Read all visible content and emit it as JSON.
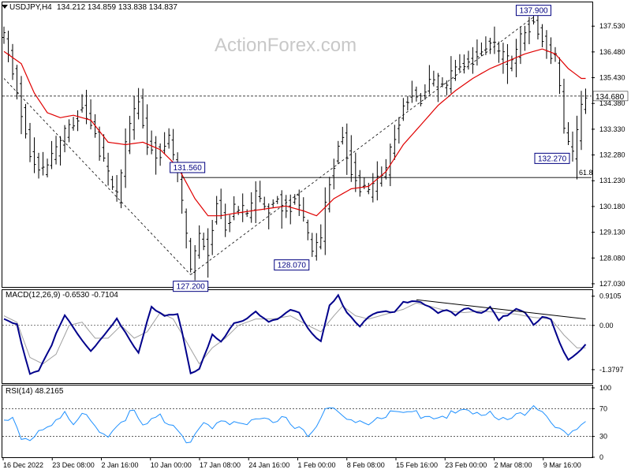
{
  "header": {
    "symbol": "USDJPY,H4",
    "ohlc": "134.212 134.859 133.838 134.837",
    "watermark": "ActionForex.com"
  },
  "macd_header": "MACD(12,26,9) -0.6530 -0.7104",
  "rsi_header": "RSI(14) 48.2165",
  "colors": {
    "price_bars": "#000000",
    "moving_average": "#e00000",
    "macd_line": "#00008b",
    "macd_signal": "#a0a0a0",
    "rsi_line": "#1e90ff",
    "label_box_border": "#000080",
    "trend_line": "#000000"
  },
  "chart_data": [
    {
      "type": "line",
      "name": "price",
      "x_labels": [
        "16 Dec 2022",
        "23 Dec 08:00",
        "2 Jan 16:00",
        "10 Jan 00:00",
        "17 Jan 08:00",
        "24 Jan 16:00",
        "1 Feb 00:00",
        "8 Feb 08:00",
        "15 Feb 16:00",
        "23 Feb 00:00",
        "2 Mar 08:00",
        "9 Mar 16:00"
      ],
      "y_ticks": [
        "137.530",
        "136.480",
        "135.430",
        "134.380",
        "133.330",
        "132.280",
        "131.230",
        "130.180",
        "129.130",
        "128.080",
        "127.030"
      ],
      "ylim": [
        126.9,
        138.5
      ],
      "current_price_label": "134.680",
      "fib_label": "61.8",
      "fib_level": 131.36,
      "swing_labels": [
        {
          "text": "131.560",
          "index": 39
        },
        {
          "text": "127.200",
          "index": 43
        },
        {
          "text": "128.070",
          "index": 71
        },
        {
          "text": "137.900",
          "index": 122
        },
        {
          "text": "132.270",
          "index": 131
        }
      ],
      "close_path": [
        [
          0,
          137.2
        ],
        [
          3,
          135.0
        ],
        [
          6,
          132.3
        ],
        [
          9,
          131.6
        ],
        [
          12,
          132.4
        ],
        [
          15,
          133.4
        ],
        [
          18,
          134.2
        ],
        [
          21,
          133.2
        ],
        [
          24,
          131.3
        ],
        [
          26,
          130.5
        ],
        [
          29,
          133.5
        ],
        [
          31,
          134.6
        ],
        [
          33,
          132.8
        ],
        [
          36,
          132.3
        ],
        [
          38,
          133.0
        ],
        [
          40,
          131.4
        ],
        [
          43,
          127.6
        ],
        [
          45,
          128.8
        ],
        [
          47,
          128.5
        ],
        [
          49,
          130.3
        ],
        [
          51,
          129.4
        ],
        [
          53,
          130.1
        ],
        [
          56,
          129.8
        ],
        [
          58,
          130.6
        ],
        [
          60,
          130.0
        ],
        [
          63,
          130.5
        ],
        [
          65,
          130.1
        ],
        [
          67,
          130.5
        ],
        [
          69,
          129.6
        ],
        [
          71,
          128.2
        ],
        [
          73,
          128.9
        ],
        [
          75,
          131.3
        ],
        [
          77,
          132.7
        ],
        [
          78,
          133.0
        ],
        [
          80,
          131.8
        ],
        [
          82,
          131.0
        ],
        [
          84,
          130.6
        ],
        [
          86,
          131.2
        ],
        [
          88,
          131.6
        ],
        [
          90,
          133.2
        ],
        [
          92,
          134.3
        ],
        [
          94,
          134.8
        ],
        [
          96,
          134.6
        ],
        [
          98,
          135.2
        ],
        [
          100,
          135.3
        ],
        [
          102,
          135.0
        ],
        [
          104,
          135.8
        ],
        [
          106,
          136.0
        ],
        [
          108,
          136.3
        ],
        [
          110,
          136.5
        ],
        [
          112,
          137.0
        ],
        [
          114,
          136.3
        ],
        [
          116,
          136.0
        ],
        [
          118,
          136.3
        ],
        [
          120,
          137.5
        ],
        [
          122,
          137.7
        ],
        [
          124,
          137.0
        ],
        [
          126,
          136.3
        ],
        [
          127,
          136.2
        ],
        [
          128,
          135.0
        ],
        [
          129,
          133.3
        ],
        [
          130,
          132.8
        ],
        [
          131,
          132.3
        ],
        [
          132,
          133.0
        ],
        [
          133,
          134.2
        ],
        [
          134,
          134.5
        ]
      ],
      "ma_path": [
        [
          0,
          136.5
        ],
        [
          4,
          136.0
        ],
        [
          7,
          134.8
        ],
        [
          10,
          134.0
        ],
        [
          13,
          133.8
        ],
        [
          16,
          133.9
        ],
        [
          20,
          133.7
        ],
        [
          24,
          132.8
        ],
        [
          28,
          132.7
        ],
        [
          32,
          132.8
        ],
        [
          36,
          132.5
        ],
        [
          40,
          131.8
        ],
        [
          44,
          130.5
        ],
        [
          47,
          129.8
        ],
        [
          50,
          129.8
        ],
        [
          53,
          129.9
        ],
        [
          57,
          130.0
        ],
        [
          61,
          130.1
        ],
        [
          65,
          130.2
        ],
        [
          69,
          130.0
        ],
        [
          72,
          129.8
        ],
        [
          76,
          130.5
        ],
        [
          80,
          130.9
        ],
        [
          84,
          131.0
        ],
        [
          88,
          131.6
        ],
        [
          92,
          132.7
        ],
        [
          96,
          133.5
        ],
        [
          100,
          134.3
        ],
        [
          104,
          134.9
        ],
        [
          108,
          135.4
        ],
        [
          112,
          135.8
        ],
        [
          116,
          136.1
        ],
        [
          120,
          136.4
        ],
        [
          124,
          136.6
        ],
        [
          127,
          136.4
        ],
        [
          130,
          135.8
        ],
        [
          133,
          135.4
        ]
      ]
    },
    {
      "type": "line",
      "name": "MACD(12,26,9)",
      "y_ticks": [
        "0.9105",
        "0.00",
        "-1.3797"
      ],
      "ylim": [
        -1.8,
        1.1
      ],
      "macd_path": [
        [
          0,
          0.2
        ],
        [
          3,
          0.0
        ],
        [
          6,
          -1.5
        ],
        [
          8,
          -1.4
        ],
        [
          11,
          -0.6
        ],
        [
          14,
          0.3
        ],
        [
          17,
          -0.3
        ],
        [
          20,
          -0.8
        ],
        [
          23,
          -0.3
        ],
        [
          26,
          0.2
        ],
        [
          29,
          -0.5
        ],
        [
          31,
          -0.9
        ],
        [
          34,
          0.6
        ],
        [
          37,
          0.3
        ],
        [
          40,
          0.4
        ],
        [
          43,
          -1.5
        ],
        [
          45,
          -1.4
        ],
        [
          48,
          -0.3
        ],
        [
          50,
          -0.5
        ],
        [
          53,
          0.1
        ],
        [
          56,
          0.2
        ],
        [
          58,
          0.4
        ],
        [
          61,
          0.1
        ],
        [
          64,
          0.3
        ],
        [
          66,
          0.5
        ],
        [
          68,
          0.4
        ],
        [
          71,
          -0.3
        ],
        [
          73,
          -0.5
        ],
        [
          75,
          0.6
        ],
        [
          77,
          0.9
        ],
        [
          79,
          0.4
        ],
        [
          82,
          0.0
        ],
        [
          84,
          0.3
        ],
        [
          86,
          0.4
        ],
        [
          88,
          0.4
        ],
        [
          90,
          0.4
        ],
        [
          92,
          0.7
        ],
        [
          94,
          0.8
        ],
        [
          96,
          0.75
        ],
        [
          98,
          0.6
        ],
        [
          100,
          0.4
        ],
        [
          102,
          0.45
        ],
        [
          104,
          0.3
        ],
        [
          106,
          0.5
        ],
        [
          108,
          0.5
        ],
        [
          110,
          0.4
        ],
        [
          112,
          0.6
        ],
        [
          114,
          0.2
        ],
        [
          116,
          0.3
        ],
        [
          118,
          0.5
        ],
        [
          120,
          0.4
        ],
        [
          122,
          0.0
        ],
        [
          124,
          0.3
        ],
        [
          126,
          0.2
        ],
        [
          128,
          -0.5
        ],
        [
          130,
          -1.1
        ],
        [
          132,
          -0.9
        ],
        [
          134,
          -0.6
        ]
      ],
      "signal_path": [
        [
          0,
          0.3
        ],
        [
          3,
          0.1
        ],
        [
          6,
          -1.0
        ],
        [
          9,
          -1.2
        ],
        [
          12,
          -0.9
        ],
        [
          15,
          0.0
        ],
        [
          18,
          0.1
        ],
        [
          21,
          -0.4
        ],
        [
          24,
          -0.4
        ],
        [
          27,
          0.0
        ],
        [
          30,
          -0.4
        ],
        [
          33,
          -0.2
        ],
        [
          36,
          0.4
        ],
        [
          39,
          0.2
        ],
        [
          42,
          -0.5
        ],
        [
          45,
          -1.2
        ],
        [
          48,
          -0.7
        ],
        [
          51,
          -0.4
        ],
        [
          54,
          0.0
        ],
        [
          58,
          0.2
        ],
        [
          62,
          0.2
        ],
        [
          66,
          0.3
        ],
        [
          70,
          0.0
        ],
        [
          73,
          -0.2
        ],
        [
          76,
          0.3
        ],
        [
          78,
          0.6
        ],
        [
          81,
          0.3
        ],
        [
          84,
          0.2
        ],
        [
          88,
          0.35
        ],
        [
          92,
          0.5
        ],
        [
          95,
          0.7
        ],
        [
          98,
          0.6
        ],
        [
          102,
          0.45
        ],
        [
          106,
          0.4
        ],
        [
          110,
          0.45
        ],
        [
          114,
          0.4
        ],
        [
          118,
          0.35
        ],
        [
          122,
          0.25
        ],
        [
          126,
          0.2
        ],
        [
          129,
          -0.3
        ],
        [
          132,
          -0.7
        ],
        [
          134,
          -0.7
        ]
      ],
      "trendline": [
        [
          95,
          0.8
        ],
        [
          134,
          0.2
        ]
      ]
    },
    {
      "type": "line",
      "name": "RSI(14)",
      "y_ticks": [
        "100",
        "70",
        "30",
        "0"
      ],
      "ylim": [
        0,
        100
      ],
      "rsi_path": [
        [
          0,
          48
        ],
        [
          2,
          55
        ],
        [
          4,
          25
        ],
        [
          6,
          22
        ],
        [
          8,
          42
        ],
        [
          10,
          45
        ],
        [
          12,
          55
        ],
        [
          14,
          60
        ],
        [
          16,
          45
        ],
        [
          18,
          62
        ],
        [
          20,
          52
        ],
        [
          22,
          38
        ],
        [
          24,
          32
        ],
        [
          26,
          48
        ],
        [
          28,
          58
        ],
        [
          30,
          65
        ],
        [
          32,
          42
        ],
        [
          34,
          50
        ],
        [
          36,
          58
        ],
        [
          38,
          50
        ],
        [
          40,
          44
        ],
        [
          42,
          22
        ],
        [
          44,
          28
        ],
        [
          46,
          45
        ],
        [
          48,
          38
        ],
        [
          50,
          52
        ],
        [
          52,
          48
        ],
        [
          54,
          55
        ],
        [
          56,
          50
        ],
        [
          58,
          58
        ],
        [
          60,
          52
        ],
        [
          62,
          48
        ],
        [
          64,
          55
        ],
        [
          66,
          50
        ],
        [
          68,
          44
        ],
        [
          70,
          35
        ],
        [
          72,
          50
        ],
        [
          74,
          65
        ],
        [
          76,
          68
        ],
        [
          78,
          58
        ],
        [
          80,
          50
        ],
        [
          82,
          55
        ],
        [
          84,
          50
        ],
        [
          86,
          58
        ],
        [
          88,
          60
        ],
        [
          90,
          65
        ],
        [
          92,
          60
        ],
        [
          94,
          64
        ],
        [
          96,
          62
        ],
        [
          98,
          60
        ],
        [
          100,
          58
        ],
        [
          102,
          62
        ],
        [
          104,
          60
        ],
        [
          106,
          65
        ],
        [
          108,
          62
        ],
        [
          110,
          58
        ],
        [
          112,
          68
        ],
        [
          114,
          55
        ],
        [
          116,
          60
        ],
        [
          118,
          62
        ],
        [
          120,
          58
        ],
        [
          122,
          70
        ],
        [
          124,
          60
        ],
        [
          126,
          55
        ],
        [
          128,
          42
        ],
        [
          130,
          35
        ],
        [
          132,
          45
        ],
        [
          134,
          48
        ]
      ]
    }
  ]
}
